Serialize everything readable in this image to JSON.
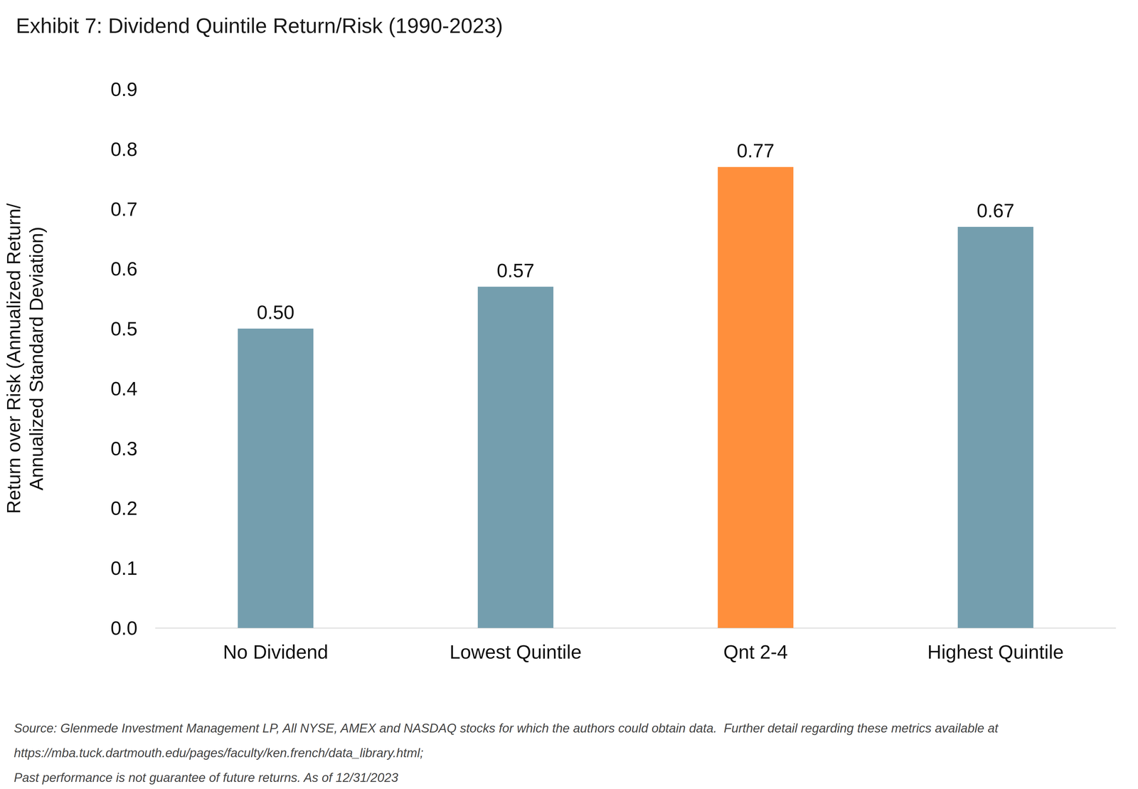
{
  "chart_data": {
    "type": "bar",
    "title": "Exhibit 7: Dividend Quintile Return/Risk (1990-2023)",
    "y_label": "Return over Risk (Annualized Return/\nAnnualized Standard Deviation)",
    "categories": [
      "No Dividend",
      "Lowest Quintile",
      "Qnt 2-4",
      "Highest Quintile"
    ],
    "values": [
      0.5,
      0.57,
      0.77,
      0.67
    ],
    "value_labels": [
      "0.50",
      "0.57",
      "0.77",
      "0.67"
    ],
    "colors": [
      "#749eae",
      "#749eae",
      "#ff8f3c",
      "#749eae"
    ],
    "ylim": [
      0,
      0.9
    ],
    "yticks": [
      {
        "value": 0,
        "label": "0.0"
      },
      0.1,
      0.2,
      0.3,
      0.4,
      0.5,
      0.6,
      0.7,
      0.8,
      0.9
    ],
    "grid": false,
    "data_labels": true,
    "footnotes": [
      "Source: Glenmede Investment Management LP, All NYSE, AMEX and NASDAQ stocks for which the authors could obtain data.  Further detail regarding these metrics available at",
      "https://mba.tuck.dartmouth.edu/pages/faculty/ken.french/data_library.html;",
      "Past performance is not guarantee of future returns. As of 12/31/2023"
    ]
  }
}
